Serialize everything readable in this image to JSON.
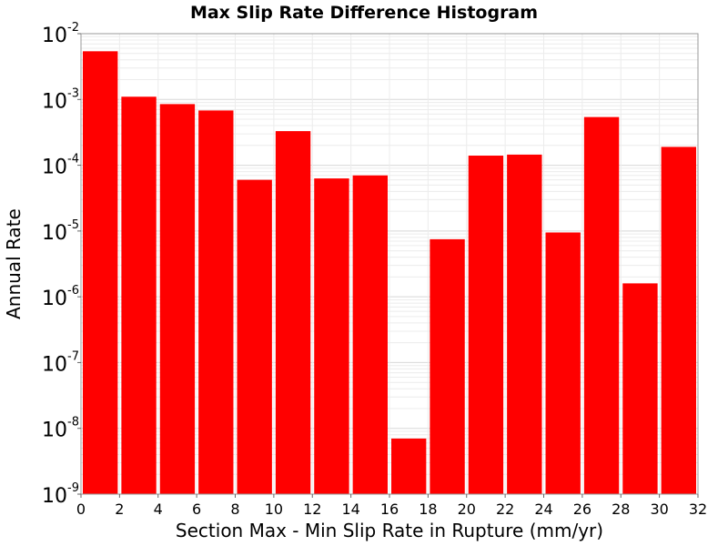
{
  "chart_data": {
    "type": "bar",
    "title": "Max Slip Rate Difference Histogram",
    "xlabel": "Section Max - Min Slip Rate in Rupture (mm/yr)",
    "ylabel": "Annual Rate",
    "bin_width": 2,
    "x": [
      1,
      3,
      5,
      7,
      9,
      11,
      13,
      15,
      17,
      19,
      21,
      23,
      25,
      27,
      29,
      31
    ],
    "values": [
      0.0054,
      0.0011,
      0.00085,
      0.00068,
      6e-05,
      0.00033,
      6.3e-05,
      7e-05,
      7e-09,
      7.5e-06,
      0.00014,
      0.000145,
      9.5e-06,
      0.00054,
      1.6e-06,
      0.00019
    ],
    "xlim": [
      0,
      32
    ],
    "ylim": [
      1e-09,
      0.01
    ],
    "yscale": "log",
    "x_ticks": [
      "0",
      "2",
      "4",
      "6",
      "8",
      "10",
      "12",
      "14",
      "16",
      "18",
      "20",
      "22",
      "24",
      "26",
      "28",
      "30",
      "32"
    ],
    "y_ticks": [
      {
        "base": "10",
        "exp": "-9"
      },
      {
        "base": "10",
        "exp": "-8"
      },
      {
        "base": "10",
        "exp": "-7"
      },
      {
        "base": "10",
        "exp": "-6"
      },
      {
        "base": "10",
        "exp": "-5"
      },
      {
        "base": "10",
        "exp": "-4"
      },
      {
        "base": "10",
        "exp": "-3"
      },
      {
        "base": "10",
        "exp": "-2"
      }
    ],
    "grid": true,
    "bar_color": "#ff0000"
  }
}
